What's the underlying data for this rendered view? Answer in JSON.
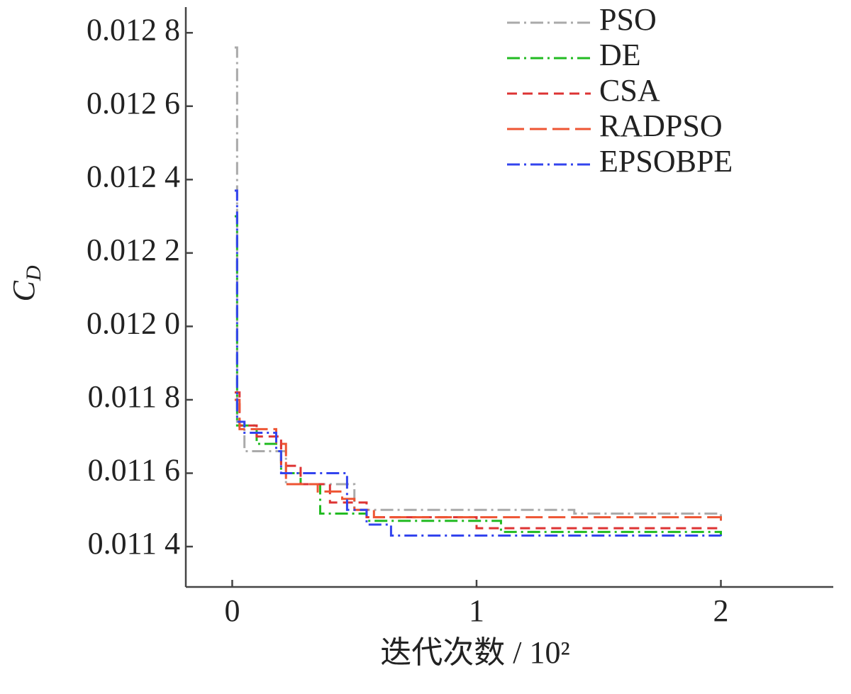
{
  "chart_data": {
    "type": "line",
    "drawstyle": "steps-post",
    "xlabel": "迭代次数 / 10²",
    "ylabel": {
      "main": "C",
      "subscript": "D"
    },
    "xlim": [
      -0.19,
      2.46
    ],
    "ylim": [
      0.01129,
      0.01287
    ],
    "xticks": [
      0,
      1,
      2
    ],
    "yticks": [
      {
        "value": 0.0128,
        "label": "0.012 8"
      },
      {
        "value": 0.0126,
        "label": "0.012 6"
      },
      {
        "value": 0.0124,
        "label": "0.012 4"
      },
      {
        "value": 0.0122,
        "label": "0.012 2"
      },
      {
        "value": 0.012,
        "label": "0.012 0"
      },
      {
        "value": 0.0118,
        "label": "0.011 8"
      },
      {
        "value": 0.0116,
        "label": "0.011 6"
      },
      {
        "value": 0.0114,
        "label": "0.011 4"
      }
    ],
    "grid": false,
    "legend": "upper right",
    "series": [
      {
        "name": "PSO",
        "color": "#aaaaaa",
        "linestyle": "dashdot",
        "x": [
          0.01,
          0.02,
          0.05,
          0.22,
          0.5,
          1.4,
          2.0
        ],
        "values": [
          0.01276,
          0.01174,
          0.01166,
          0.01157,
          0.0115,
          0.01149,
          0.01147
        ]
      },
      {
        "name": "DE",
        "color": "#22bb22",
        "linestyle": "dashdot",
        "x": [
          0.01,
          0.02,
          0.1,
          0.2,
          0.28,
          0.36,
          0.55,
          1.1,
          2.0
        ],
        "values": [
          0.0123,
          0.01173,
          0.01168,
          0.0116,
          0.01157,
          0.01149,
          0.01147,
          0.01144,
          0.01143
        ]
      },
      {
        "name": "CSA",
        "color": "#dd3333",
        "linestyle": "dashed",
        "x": [
          0.01,
          0.03,
          0.1,
          0.2,
          0.28,
          0.4,
          0.55,
          1.0,
          2.0
        ],
        "values": [
          0.01182,
          0.01173,
          0.0117,
          0.01162,
          0.01157,
          0.01152,
          0.01148,
          0.01145,
          0.01145
        ]
      },
      {
        "name": "RADPSO",
        "color": "#ee5533",
        "linestyle": "longdash",
        "x": [
          0.01,
          0.03,
          0.18,
          0.22,
          0.35,
          0.45,
          0.5,
          0.58,
          2.0
        ],
        "values": [
          0.0118,
          0.01172,
          0.01168,
          0.01157,
          0.01155,
          0.01153,
          0.0115,
          0.01148,
          0.01146
        ]
      },
      {
        "name": "EPSOBPE",
        "color": "#3344ee",
        "linestyle": "dashdot",
        "x": [
          0.01,
          0.02,
          0.05,
          0.18,
          0.2,
          0.37,
          0.47,
          0.55,
          0.65,
          2.0
        ],
        "values": [
          0.01237,
          0.01174,
          0.01171,
          0.01166,
          0.0116,
          0.0116,
          0.0115,
          0.01146,
          0.01143,
          0.01142
        ]
      }
    ]
  }
}
